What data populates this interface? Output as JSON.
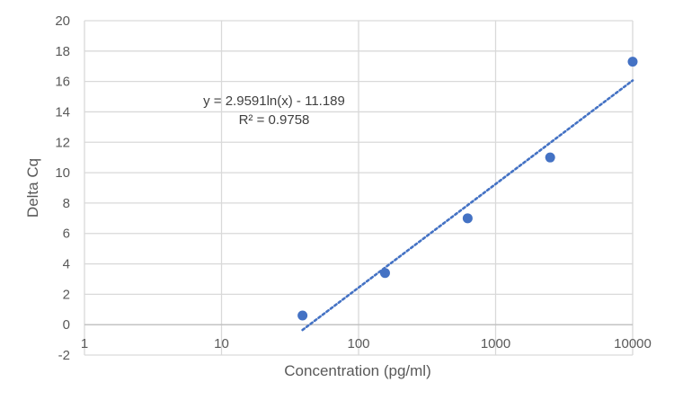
{
  "chart_data": {
    "type": "scatter",
    "title": "",
    "xlabel": "Concentration (pg/ml)",
    "ylabel": "Delta Cq",
    "x_scale": "log10",
    "xlim": [
      1,
      10000
    ],
    "ylim": [
      -2,
      20
    ],
    "x_ticks": [
      1,
      10,
      100,
      1000,
      10000
    ],
    "y_ticks": [
      -2,
      0,
      2,
      4,
      6,
      8,
      10,
      12,
      14,
      16,
      18,
      20
    ],
    "x_tick_labels": [
      "1",
      "10",
      "100",
      "1000",
      "10000"
    ],
    "y_tick_labels": [
      "-2",
      "0",
      "2",
      "4",
      "6",
      "8",
      "10",
      "12",
      "14",
      "16",
      "18",
      "20"
    ],
    "grid": true,
    "legend": "none",
    "series": [
      {
        "x": [
          39,
          156,
          625,
          2500,
          10000
        ],
        "y": [
          0.6,
          3.4,
          7.0,
          11.0,
          17.3
        ],
        "color": "#4472C4",
        "marker": "circle"
      }
    ],
    "trendline": {
      "type": "logarithmic",
      "a": 2.9591,
      "b": -11.189,
      "x_range": [
        39,
        10000
      ],
      "style": "dotted",
      "color": "#4472C4",
      "equation_text": "y = 2.9591ln(x) - 11.189",
      "r2_text": "R² = 0.9758"
    },
    "gridline_color": "#D9D9D9",
    "text_color": "#595959"
  }
}
